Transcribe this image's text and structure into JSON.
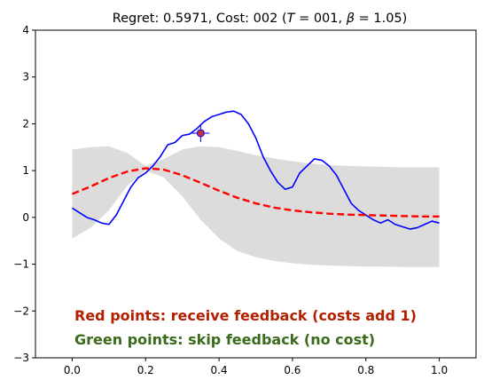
{
  "chart_data": {
    "type": "line",
    "title": "Regret: 0.5971, Cost: 002 (T = 001, β = 1.05)",
    "title_parts": {
      "prefix": "Regret: 0.5971, Cost: 002 (",
      "t_symbol": "T",
      "t_value": " = 001, ",
      "beta_symbol": "β",
      "beta_value": " = 1.05)"
    },
    "xlabel": "",
    "ylabel": "",
    "xlim": [
      -0.1,
      1.1
    ],
    "ylim": [
      -3,
      4
    ],
    "x_ticks": [
      0.0,
      0.2,
      0.4,
      0.6,
      0.8,
      1.0
    ],
    "x_tick_labels": [
      "0.0",
      "0.2",
      "0.4",
      "0.6",
      "0.8",
      "1.0"
    ],
    "y_ticks": [
      -3,
      -2,
      -1,
      0,
      1,
      2,
      3,
      4
    ],
    "y_tick_labels": [
      "−3",
      "−2",
      "−1",
      "0",
      "1",
      "2",
      "3",
      "4"
    ],
    "grid": false,
    "series": [
      {
        "style": "solid",
        "color": "#0000ff",
        "x": [
          0.0,
          0.02,
          0.04,
          0.06,
          0.08,
          0.1,
          0.12,
          0.14,
          0.16,
          0.18,
          0.2,
          0.22,
          0.24,
          0.26,
          0.28,
          0.3,
          0.32,
          0.34,
          0.36,
          0.38,
          0.4,
          0.42,
          0.44,
          0.46,
          0.48,
          0.5,
          0.52,
          0.54,
          0.56,
          0.58,
          0.6,
          0.62,
          0.64,
          0.66,
          0.68,
          0.7,
          0.72,
          0.74,
          0.76,
          0.78,
          0.8,
          0.82,
          0.84,
          0.86,
          0.88,
          0.9,
          0.92,
          0.94,
          0.96,
          0.98,
          1.0
        ],
        "y": [
          0.2,
          0.1,
          0.0,
          -0.05,
          -0.12,
          -0.15,
          0.05,
          0.35,
          0.65,
          0.85,
          0.95,
          1.1,
          1.3,
          1.55,
          1.6,
          1.75,
          1.78,
          1.9,
          2.05,
          2.15,
          2.2,
          2.25,
          2.27,
          2.2,
          2.0,
          1.7,
          1.3,
          1.0,
          0.75,
          0.6,
          0.65,
          0.95,
          1.1,
          1.25,
          1.22,
          1.1,
          0.9,
          0.6,
          0.3,
          0.15,
          0.05,
          -0.05,
          -0.12,
          -0.05,
          -0.15,
          -0.2,
          -0.25,
          -0.22,
          -0.15,
          -0.08,
          -0.12
        ]
      },
      {
        "style": "dashed",
        "color": "#ff0000",
        "x": [
          0.0,
          0.05,
          0.1,
          0.15,
          0.2,
          0.25,
          0.3,
          0.35,
          0.4,
          0.45,
          0.5,
          0.55,
          0.6,
          0.65,
          0.7,
          0.75,
          0.8,
          0.85,
          0.9,
          0.95,
          1.0
        ],
        "y": [
          0.5,
          0.66,
          0.84,
          0.98,
          1.05,
          1.02,
          0.9,
          0.74,
          0.57,
          0.42,
          0.3,
          0.21,
          0.15,
          0.11,
          0.08,
          0.06,
          0.05,
          0.04,
          0.03,
          0.02,
          0.02
        ]
      }
    ],
    "confidence_band": {
      "color": "#dcdcdc",
      "x": [
        0.0,
        0.05,
        0.1,
        0.15,
        0.2,
        0.25,
        0.3,
        0.35,
        0.4,
        0.45,
        0.5,
        0.55,
        0.6,
        0.65,
        0.7,
        0.75,
        0.8,
        0.85,
        0.9,
        0.95,
        1.0
      ],
      "lower": [
        -0.45,
        -0.22,
        0.15,
        0.68,
        1.0,
        0.85,
        0.45,
        -0.05,
        -0.45,
        -0.72,
        -0.85,
        -0.93,
        -0.98,
        -1.01,
        -1.03,
        -1.04,
        -1.05,
        -1.05,
        -1.06,
        -1.06,
        -1.06
      ],
      "upper": [
        1.45,
        1.5,
        1.52,
        1.38,
        1.1,
        1.25,
        1.45,
        1.52,
        1.5,
        1.42,
        1.33,
        1.26,
        1.2,
        1.15,
        1.12,
        1.1,
        1.09,
        1.08,
        1.07,
        1.07,
        1.07
      ]
    },
    "marker": {
      "x": 0.35,
      "y": 1.8,
      "fill": "#c83030",
      "edge": "#0000ff"
    },
    "annotations": [
      {
        "text": "Red points: receive feedback (costs add 1)",
        "color": "#b22000"
      },
      {
        "text": "Green points:  skip feedback (no cost)",
        "color": "#3c6a1c"
      }
    ]
  }
}
